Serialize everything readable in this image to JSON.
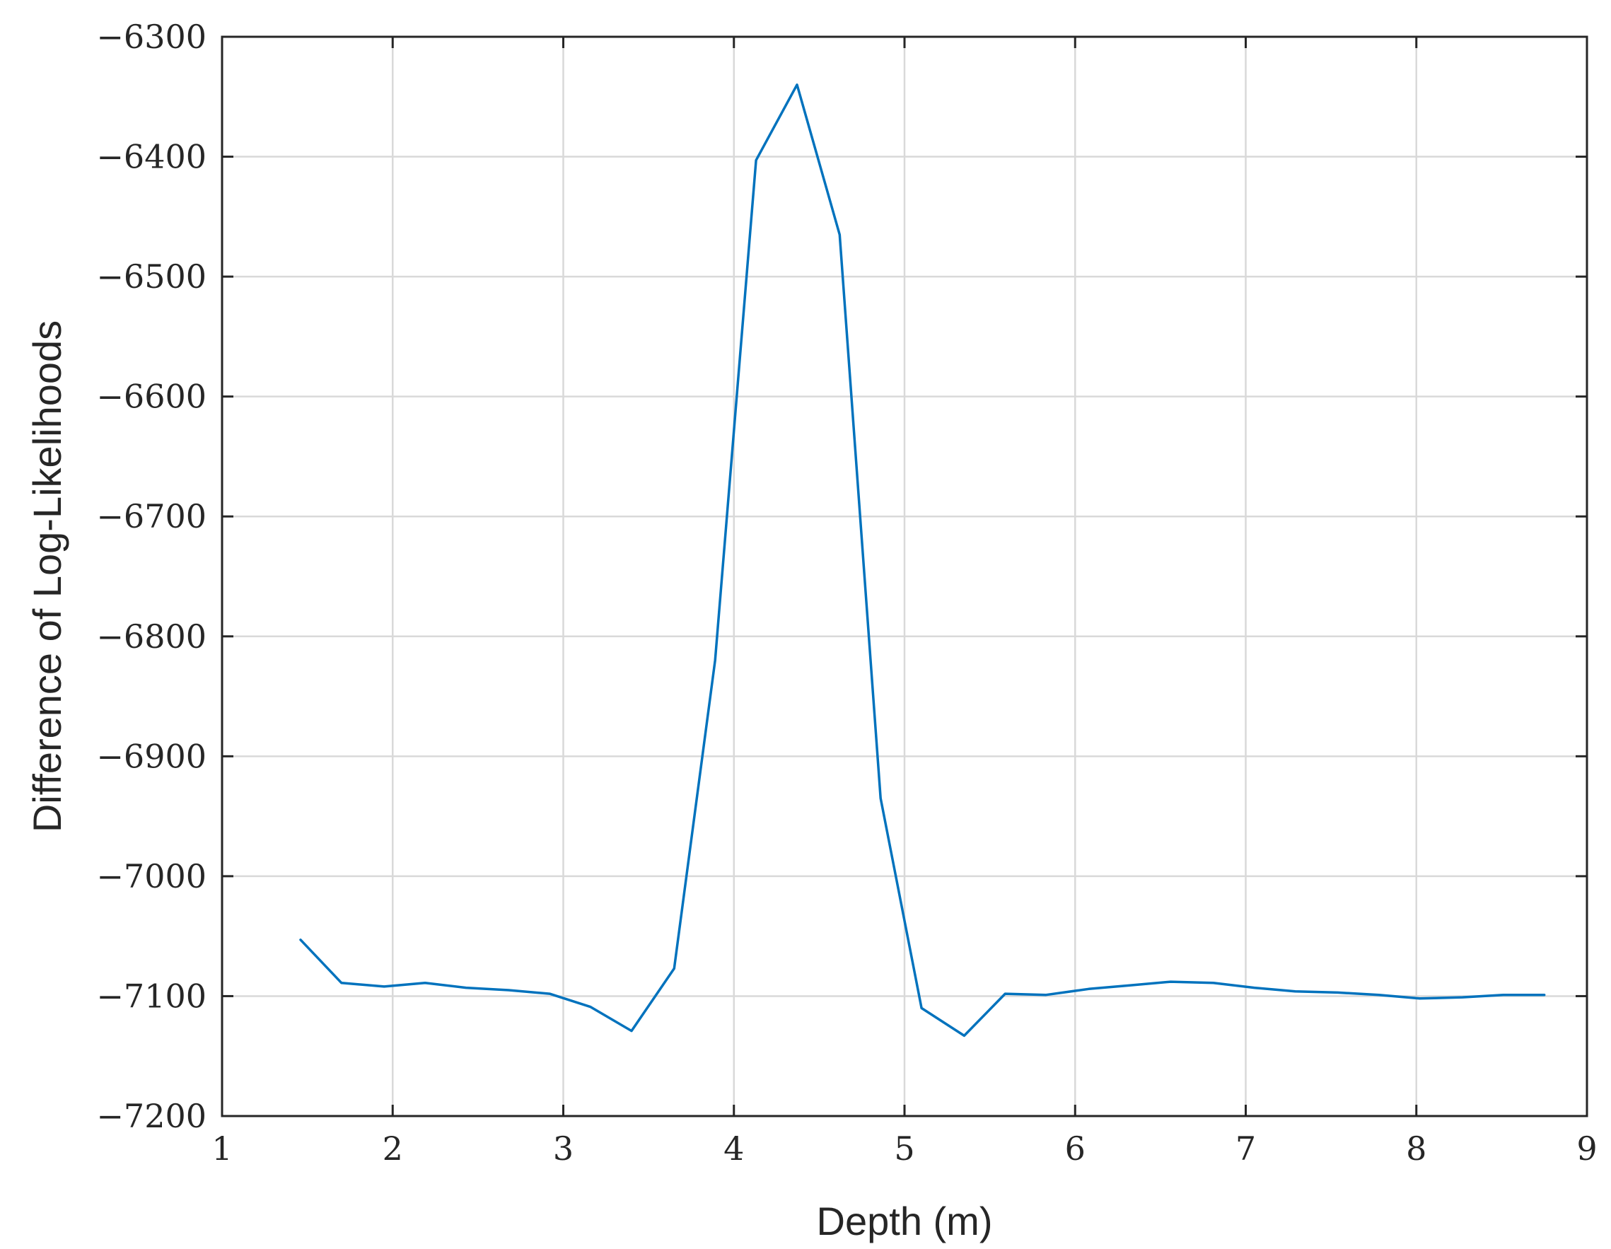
{
  "chart_data": {
    "type": "line",
    "title": "",
    "xlabel": "Depth (m)",
    "ylabel": "Difference of Log-Likelihoods",
    "xlim": [
      1,
      9
    ],
    "ylim": [
      -7200,
      -6300
    ],
    "xticks": [
      1,
      2,
      3,
      4,
      5,
      6,
      7,
      8,
      9
    ],
    "xtick_labels": [
      "1",
      "2",
      "3",
      "4",
      "5",
      "6",
      "7",
      "8",
      "9"
    ],
    "yticks": [
      -6300,
      -6400,
      -6500,
      -6600,
      -6700,
      -6800,
      -6900,
      -7000,
      -7100,
      -7200
    ],
    "ytick_labels": [
      "−6300",
      "−6400",
      "−6500",
      "−6600",
      "−6700",
      "−6800",
      "−6900",
      "−7000",
      "−7100",
      "−7200"
    ],
    "grid": true,
    "legend": "none",
    "series": [
      {
        "color": "#0072bd",
        "x": [
          1.46,
          1.7,
          1.95,
          2.19,
          2.43,
          2.68,
          2.92,
          3.16,
          3.4,
          3.65,
          3.89,
          4.13,
          4.37,
          4.62,
          4.86,
          5.1,
          5.35,
          5.59,
          5.83,
          6.08,
          6.32,
          6.56,
          6.81,
          7.05,
          7.29,
          7.54,
          7.78,
          8.02,
          8.27,
          8.51,
          8.75
        ],
        "y": [
          -7053,
          -7089,
          -7092,
          -7089,
          -7093,
          -7095,
          -7098,
          -7109,
          -7129,
          -7077,
          -6820,
          -6403,
          -6340,
          -6465,
          -6935,
          -7110,
          -7133,
          -7098,
          -7099,
          -7094,
          -7091,
          -7088,
          -7089,
          -7093,
          -7096,
          -7097,
          -7099,
          -7102,
          -7101,
          -7099,
          -7099
        ]
      }
    ]
  }
}
